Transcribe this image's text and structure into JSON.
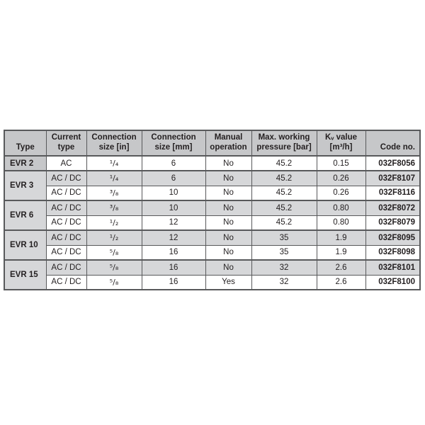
{
  "colors": {
    "header_bg": "#c6c7c9",
    "stripe_bg": "#d6d7d9",
    "row_bg": "#ffffff",
    "border": "#58595b",
    "text": "#231f20"
  },
  "table": {
    "columns": [
      {
        "label": "Type"
      },
      {
        "label": "Current\ntype"
      },
      {
        "label": "Connection\nsize [in]"
      },
      {
        "label": "Connection\nsize [mm]"
      },
      {
        "label": "Manual\noperation"
      },
      {
        "label": "Max. working\npressure [bar]"
      },
      {
        "label": "Kᵥ value\n[m³/h]"
      },
      {
        "label": "Code no."
      }
    ],
    "groups": [
      {
        "type": "EVR 2",
        "rows": [
          {
            "current_type": "AC",
            "size_in": "¹/₄",
            "size_mm": "6",
            "manual_operation": "No",
            "pressure_bar": "45.2",
            "kv_value": "0.15",
            "code_no": "032F8056"
          }
        ]
      },
      {
        "type": "EVR 3",
        "rows": [
          {
            "current_type": "AC / DC",
            "size_in": "¹/₄",
            "size_mm": "6",
            "manual_operation": "No",
            "pressure_bar": "45.2",
            "kv_value": "0.26",
            "code_no": "032F8107"
          },
          {
            "current_type": "AC / DC",
            "size_in": "³/₈",
            "size_mm": "10",
            "manual_operation": "No",
            "pressure_bar": "45.2",
            "kv_value": "0.26",
            "code_no": "032F8116"
          }
        ]
      },
      {
        "type": "EVR 6",
        "rows": [
          {
            "current_type": "AC / DC",
            "size_in": "³/₈",
            "size_mm": "10",
            "manual_operation": "No",
            "pressure_bar": "45.2",
            "kv_value": "0.80",
            "code_no": "032F8072"
          },
          {
            "current_type": "AC / DC",
            "size_in": "¹/₂",
            "size_mm": "12",
            "manual_operation": "No",
            "pressure_bar": "45.2",
            "kv_value": "0.80",
            "code_no": "032F8079"
          }
        ]
      },
      {
        "type": "EVR 10",
        "rows": [
          {
            "current_type": "AC / DC",
            "size_in": "¹/₂",
            "size_mm": "12",
            "manual_operation": "No",
            "pressure_bar": "35",
            "kv_value": "1.9",
            "code_no": "032F8095"
          },
          {
            "current_type": "AC / DC",
            "size_in": "⁵/₈",
            "size_mm": "16",
            "manual_operation": "No",
            "pressure_bar": "35",
            "kv_value": "1.9",
            "code_no": "032F8098"
          }
        ]
      },
      {
        "type": "EVR 15",
        "rows": [
          {
            "current_type": "AC / DC",
            "size_in": "⁵/₈",
            "size_mm": "16",
            "manual_operation": "No",
            "pressure_bar": "32",
            "kv_value": "2.6",
            "code_no": "032F8101"
          },
          {
            "current_type": "AC / DC",
            "size_in": "⁵/₈",
            "size_mm": "16",
            "manual_operation": "Yes",
            "pressure_bar": "32",
            "kv_value": "2.6",
            "code_no": "032F8100"
          }
        ]
      }
    ]
  },
  "chart_data": {
    "type": "table",
    "title": "",
    "columns": [
      "Type",
      "Current type",
      "Connection size [in]",
      "Connection size [mm]",
      "Manual operation",
      "Max. working pressure [bar]",
      "Kv value [m3/h]",
      "Code no."
    ],
    "rows": [
      [
        "EVR 2",
        "AC",
        "1/4",
        6,
        "No",
        45.2,
        0.15,
        "032F8056"
      ],
      [
        "EVR 3",
        "AC / DC",
        "1/4",
        6,
        "No",
        45.2,
        0.26,
        "032F8107"
      ],
      [
        "EVR 3",
        "AC / DC",
        "3/8",
        10,
        "No",
        45.2,
        0.26,
        "032F8116"
      ],
      [
        "EVR 6",
        "AC / DC",
        "3/8",
        10,
        "No",
        45.2,
        0.8,
        "032F8072"
      ],
      [
        "EVR 6",
        "AC / DC",
        "1/2",
        12,
        "No",
        45.2,
        0.8,
        "032F8079"
      ],
      [
        "EVR 10",
        "AC / DC",
        "1/2",
        12,
        "No",
        35,
        1.9,
        "032F8095"
      ],
      [
        "EVR 10",
        "AC / DC",
        "5/8",
        16,
        "No",
        35,
        1.9,
        "032F8098"
      ],
      [
        "EVR 15",
        "AC / DC",
        "5/8",
        16,
        "No",
        32,
        2.6,
        "032F8101"
      ],
      [
        "EVR 15",
        "AC / DC",
        "5/8",
        16,
        "Yes",
        32,
        2.6,
        "032F8100"
      ]
    ]
  }
}
